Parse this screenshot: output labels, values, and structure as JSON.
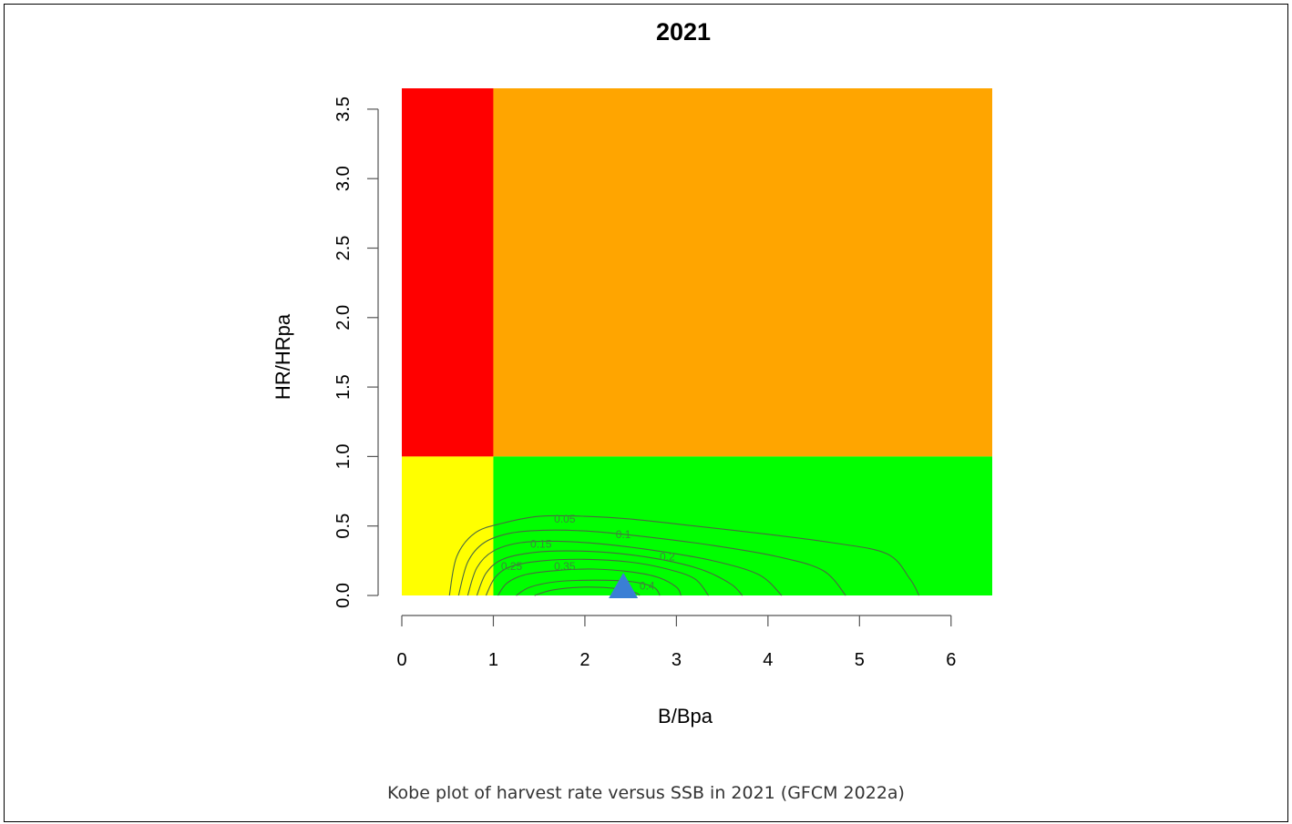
{
  "caption": "Kobe plot of harvest rate versus SSB in 2021 (GFCM 2022a)",
  "chart_data": {
    "type": "scatter",
    "title": "2021",
    "xlabel": "B/Bpa",
    "ylabel": "HR/HRpa",
    "xlim": [
      0,
      6.45
    ],
    "ylim": [
      0,
      3.65
    ],
    "x_ticks": [
      0,
      1,
      2,
      3,
      4,
      5,
      6
    ],
    "y_ticks": [
      0.0,
      0.5,
      1.0,
      1.5,
      2.0,
      2.5,
      3.0,
      3.5
    ],
    "y_tick_labels": [
      "0.0",
      "0.5",
      "1.0",
      "1.5",
      "2.0",
      "2.5",
      "3.0",
      "3.5"
    ],
    "grid": false,
    "quadrants": [
      {
        "name": "red",
        "x0": 0,
        "x1": 1,
        "y0": 1,
        "y1": 3.65,
        "color": "#ff0000"
      },
      {
        "name": "orange",
        "x0": 1,
        "x1": 6.45,
        "y0": 1,
        "y1": 3.65,
        "color": "#ffa500"
      },
      {
        "name": "yellow",
        "x0": 0,
        "x1": 1,
        "y0": 0,
        "y1": 1,
        "color": "#ffff00"
      },
      {
        "name": "green",
        "x0": 1,
        "x1": 6.45,
        "y0": 0,
        "y1": 1,
        "color": "#00ff00"
      }
    ],
    "point": {
      "x": 2.42,
      "y": 0.02,
      "marker": "triangle",
      "color": "#3a7fd5"
    },
    "contours": [
      {
        "level": "0.05",
        "label_x": 1.78,
        "label_y": 0.55,
        "points": [
          [
            0.52,
            0
          ],
          [
            0.6,
            0.28
          ],
          [
            0.8,
            0.45
          ],
          [
            1.1,
            0.52
          ],
          [
            1.5,
            0.57
          ],
          [
            2.0,
            0.57
          ],
          [
            2.5,
            0.55
          ],
          [
            3.2,
            0.5
          ],
          [
            4.0,
            0.44
          ],
          [
            4.7,
            0.38
          ],
          [
            5.3,
            0.3
          ],
          [
            5.55,
            0.12
          ],
          [
            5.65,
            0
          ]
        ]
      },
      {
        "level": "0.1",
        "label_x": 2.42,
        "label_y": 0.44,
        "points": [
          [
            0.62,
            0
          ],
          [
            0.72,
            0.24
          ],
          [
            0.9,
            0.38
          ],
          [
            1.2,
            0.45
          ],
          [
            1.6,
            0.47
          ],
          [
            2.1,
            0.46
          ],
          [
            2.7,
            0.42
          ],
          [
            3.4,
            0.36
          ],
          [
            4.1,
            0.28
          ],
          [
            4.6,
            0.18
          ],
          [
            4.85,
            0
          ]
        ]
      },
      {
        "level": "0.15",
        "label_x": 1.52,
        "label_y": 0.37,
        "points": [
          [
            0.72,
            0
          ],
          [
            0.82,
            0.2
          ],
          [
            1.0,
            0.32
          ],
          [
            1.3,
            0.38
          ],
          [
            1.7,
            0.39
          ],
          [
            2.2,
            0.37
          ],
          [
            2.8,
            0.32
          ],
          [
            3.4,
            0.25
          ],
          [
            3.9,
            0.15
          ],
          [
            4.15,
            0
          ]
        ]
      },
      {
        "level": "0.2",
        "label_x": 2.9,
        "label_y": 0.28,
        "points": [
          [
            0.82,
            0
          ],
          [
            0.92,
            0.16
          ],
          [
            1.1,
            0.26
          ],
          [
            1.45,
            0.31
          ],
          [
            1.9,
            0.32
          ],
          [
            2.4,
            0.3
          ],
          [
            2.9,
            0.25
          ],
          [
            3.3,
            0.18
          ],
          [
            3.6,
            0.08
          ],
          [
            3.72,
            0
          ]
        ]
      },
      {
        "level": "0.25",
        "label_x": 1.2,
        "label_y": 0.21,
        "points": [
          [
            0.92,
            0
          ],
          [
            1.02,
            0.13
          ],
          [
            1.2,
            0.21
          ],
          [
            1.55,
            0.25
          ],
          [
            2.0,
            0.26
          ],
          [
            2.5,
            0.24
          ],
          [
            2.9,
            0.19
          ],
          [
            3.2,
            0.12
          ],
          [
            3.35,
            0
          ]
        ]
      },
      {
        "level": "0.35",
        "label_x": 1.78,
        "label_y": 0.21,
        "points": [
          [
            1.05,
            0
          ],
          [
            1.15,
            0.09
          ],
          [
            1.35,
            0.15
          ],
          [
            1.7,
            0.18
          ],
          [
            2.1,
            0.19
          ],
          [
            2.5,
            0.17
          ],
          [
            2.8,
            0.13
          ],
          [
            3.0,
            0.06
          ],
          [
            3.05,
            0
          ]
        ]
      },
      {
        "level": "0.4",
        "label_x": 2.68,
        "label_y": 0.07,
        "points": [
          [
            1.25,
            0
          ],
          [
            1.4,
            0.06
          ],
          [
            1.7,
            0.1
          ],
          [
            2.1,
            0.11
          ],
          [
            2.5,
            0.1
          ],
          [
            2.75,
            0.06
          ],
          [
            2.82,
            0
          ]
        ]
      },
      {
        "level": "",
        "points": [
          [
            1.45,
            0
          ],
          [
            1.65,
            0.04
          ],
          [
            2.0,
            0.06
          ],
          [
            2.35,
            0.05
          ],
          [
            2.55,
            0.02
          ],
          [
            2.6,
            0
          ]
        ]
      }
    ],
    "colors": {
      "axis": "#555555",
      "contour": "#4a6a40",
      "contour_label": "#3a8a3a"
    }
  }
}
